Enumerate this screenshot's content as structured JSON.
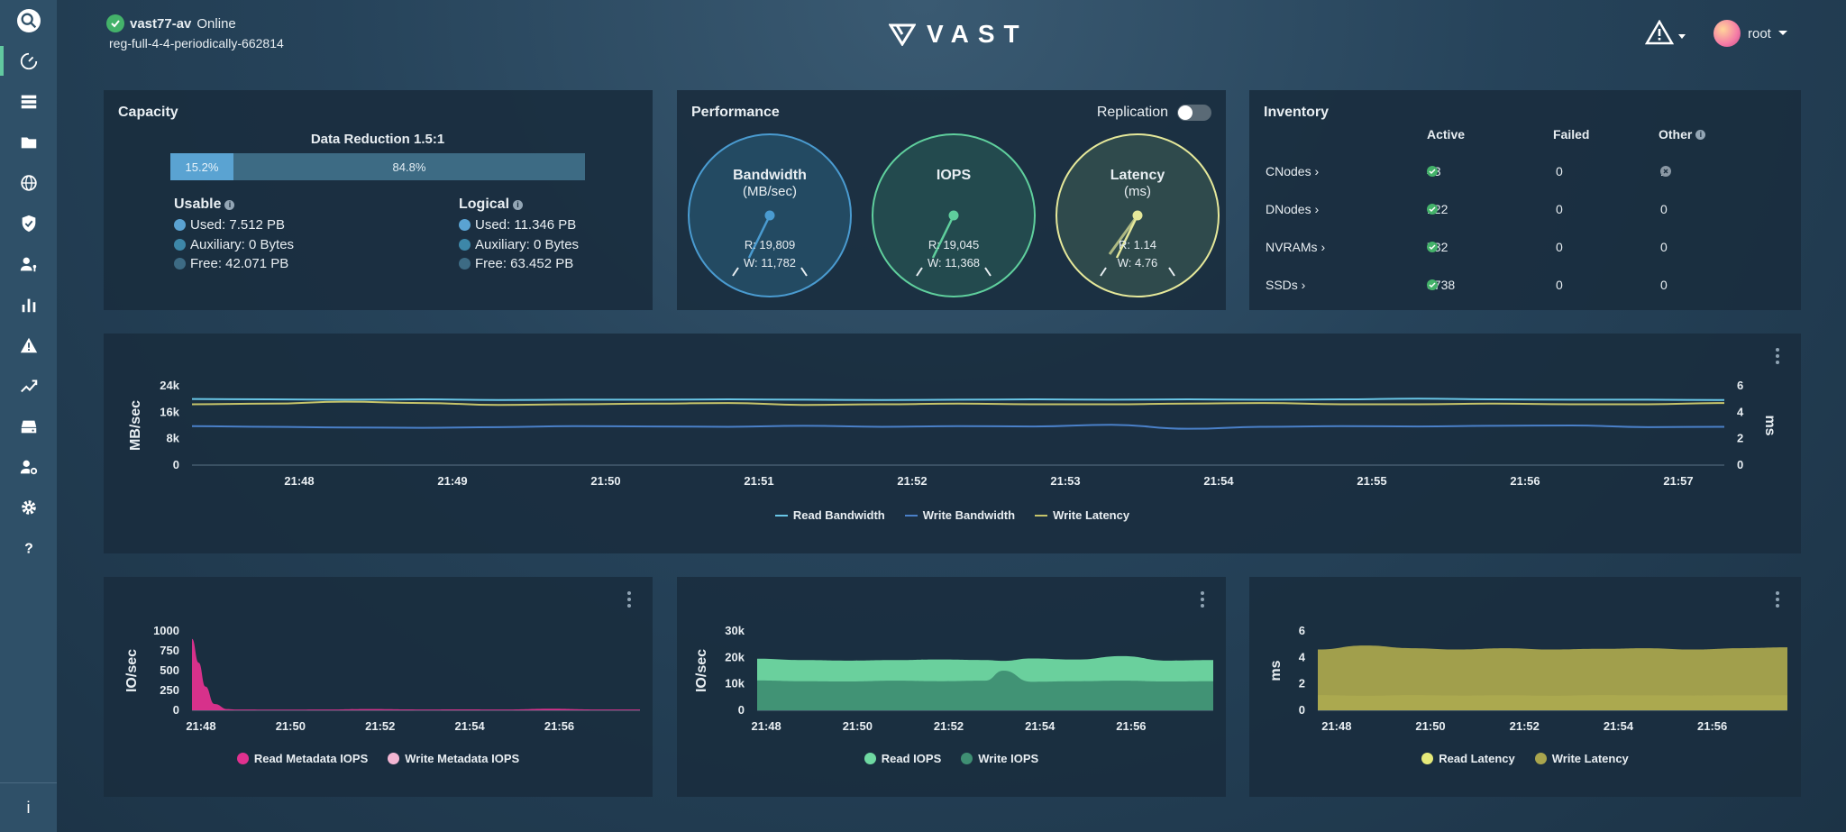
{
  "cluster": {
    "name": "vast77-av",
    "status": "Online",
    "subtitle": "reg-full-4-4-periodically-662814"
  },
  "logo": {
    "text": "VAST"
  },
  "user": {
    "name": "root"
  },
  "sidebar": {
    "items": [
      "search-icon",
      "dashboard-icon",
      "storage-icon",
      "folder-icon",
      "globe-icon",
      "shield-icon",
      "user-key-icon",
      "bar-chart-icon",
      "alert-icon",
      "trend-icon",
      "drive-icon",
      "user-gear-icon",
      "gear-icon",
      "help-icon"
    ],
    "bottom_label": "i"
  },
  "capacity": {
    "title": "Capacity",
    "data_reduction": "Data Reduction 1.5:1",
    "bar": {
      "used_fraction": 0.152,
      "used_label": "15.2%",
      "free_label": "84.8%"
    },
    "usable": {
      "title": "Usable",
      "used": "Used: 7.512 PB",
      "auxiliary": "Auxiliary: 0 Bytes",
      "free": "Free: 42.071 PB"
    },
    "logical": {
      "title": "Logical",
      "used": "Used: 11.346 PB",
      "auxiliary": "Auxiliary: 0 Bytes",
      "free": "Free: 63.452 PB"
    },
    "colors": {
      "used": "#5aa3d2",
      "auxiliary": "#3d87a8",
      "free": "#3d6b84"
    }
  },
  "performance": {
    "title": "Performance",
    "replication_label": "Replication",
    "gauges": [
      {
        "title": "Bandwidth",
        "subtitle": "(MB/sec)",
        "read": "R: 19,809",
        "write": "W: 11,782",
        "color": "#4a9bd0",
        "fill": "#234a62"
      },
      {
        "title": "IOPS",
        "subtitle": "",
        "read": "R: 19,045",
        "write": "W: 11,368",
        "color": "#5fcf9d",
        "fill": "#234a4e"
      },
      {
        "title": "Latency",
        "subtitle": "(ms)",
        "read": "R: 1.14",
        "write": "W: 4.76",
        "color": "#e5e89a",
        "fill": "#2f4a4c"
      }
    ]
  },
  "inventory": {
    "title": "Inventory",
    "headers": {
      "active": "Active",
      "failed": "Failed",
      "other": "Other"
    },
    "rows": [
      {
        "name": "CNodes ›",
        "active": "43",
        "failed": "0",
        "other": "1"
      },
      {
        "name": "DNodes ›",
        "active": "122",
        "failed": "0",
        "other": "0"
      },
      {
        "name": "NVRAMs ›",
        "active": "732",
        "failed": "0",
        "other": "0"
      },
      {
        "name": "SSDs ›",
        "active": "3738",
        "failed": "0",
        "other": "0"
      }
    ]
  },
  "chart_data": [
    {
      "type": "line",
      "ylabel": "MB/sec",
      "y2label": "ms",
      "ylim": [
        0,
        24000
      ],
      "yticks": [
        "0",
        "8k",
        "16k",
        "24k"
      ],
      "y2lim": [
        0,
        6
      ],
      "y2ticks": [
        "0",
        "2",
        "4",
        "6"
      ],
      "xticks": [
        "21:48",
        "21:49",
        "21:50",
        "21:51",
        "21:52",
        "21:53",
        "21:54",
        "21:55",
        "21:56",
        "21:57"
      ],
      "x": [
        0,
        0.5,
        1,
        1.5,
        2,
        2.5,
        3,
        3.5,
        4,
        4.5,
        5,
        5.5,
        6,
        6.5,
        7,
        7.5,
        8,
        8.5,
        9,
        9.5,
        10
      ],
      "series": [
        {
          "name": "Read Bandwidth",
          "color": "#69c6e6",
          "axis": "left",
          "values": [
            20000,
            19900,
            19800,
            19900,
            19700,
            19800,
            19800,
            19900,
            19800,
            19700,
            19800,
            19900,
            19800,
            19900,
            19800,
            19900,
            20100,
            19900,
            19800,
            19800,
            19700
          ]
        },
        {
          "name": "Write Bandwidth",
          "color": "#4a80c8",
          "axis": "left",
          "values": [
            11800,
            11600,
            11400,
            11300,
            11500,
            11800,
            11700,
            11600,
            11900,
            11600,
            11800,
            11700,
            12200,
            11000,
            11600,
            11800,
            11700,
            11900,
            12000,
            11500,
            11600
          ]
        },
        {
          "name": "Write Latency",
          "color": "#c6c46a",
          "axis": "right",
          "values": [
            4.6,
            4.65,
            4.8,
            4.7,
            4.55,
            4.6,
            4.65,
            4.7,
            4.55,
            4.6,
            4.65,
            4.6,
            4.6,
            4.65,
            4.7,
            4.6,
            4.6,
            4.65,
            4.6,
            4.6,
            4.7
          ]
        }
      ]
    },
    {
      "type": "area",
      "ylabel": "IO/sec",
      "ylim": [
        0,
        1000
      ],
      "yticks": [
        "0",
        "250",
        "500",
        "750",
        "1000"
      ],
      "xticks": [
        "21:48",
        "21:50",
        "21:52",
        "21:54",
        "21:56"
      ],
      "x": [
        0,
        0.15,
        0.3,
        0.5,
        0.8,
        1,
        2,
        3,
        4,
        5,
        6,
        7,
        8,
        9,
        10
      ],
      "series": [
        {
          "name": "Read Metadata IOPS",
          "color": "#e1318f",
          "values": [
            900,
            600,
            300,
            80,
            15,
            10,
            8,
            10,
            15,
            10,
            12,
            10,
            20,
            10,
            10
          ]
        },
        {
          "name": "Write Metadata IOPS",
          "color": "#f3b6d3",
          "values": [
            0,
            0,
            0,
            0,
            0,
            0,
            0,
            0,
            0,
            0,
            0,
            0,
            0,
            0,
            0
          ]
        }
      ]
    },
    {
      "type": "area",
      "ylabel": "IO/sec",
      "ylim": [
        0,
        30000
      ],
      "yticks": [
        "0",
        "10k",
        "20k",
        "30k"
      ],
      "xticks": [
        "21:48",
        "21:50",
        "21:52",
        "21:54",
        "21:56"
      ],
      "x": [
        0,
        1,
        2,
        3,
        4,
        5,
        5.4,
        6,
        7,
        8,
        9,
        10
      ],
      "series": [
        {
          "name": "Read IOPS",
          "color": "#6fd9a2",
          "values": [
            19500,
            19000,
            18800,
            19000,
            19200,
            19000,
            18700,
            19600,
            19200,
            20500,
            18800,
            19000
          ]
        },
        {
          "name": "Write IOPS",
          "color": "#3f8f73",
          "values": [
            11300,
            11000,
            10900,
            11200,
            11000,
            11200,
            15000,
            10800,
            11000,
            11200,
            10900,
            11000
          ]
        }
      ]
    },
    {
      "type": "area",
      "ylabel": "ms",
      "ylim": [
        0,
        6
      ],
      "yticks": [
        "0",
        "2",
        "4",
        "6"
      ],
      "xticks": [
        "21:48",
        "21:50",
        "21:52",
        "21:54",
        "21:56"
      ],
      "x": [
        0,
        1,
        2,
        3,
        4,
        5,
        6,
        7,
        8,
        9,
        10
      ],
      "series": [
        {
          "name": "Read Latency",
          "color": "#e6ea7a",
          "values": [
            1.15,
            1.1,
            1.15,
            1.12,
            1.14,
            1.1,
            1.15,
            1.13,
            1.12,
            1.14,
            1.14
          ]
        },
        {
          "name": "Write Latency",
          "color": "#a9a54d",
          "values": [
            4.6,
            4.9,
            4.7,
            4.6,
            4.7,
            4.6,
            4.65,
            4.7,
            4.6,
            4.7,
            4.76
          ]
        }
      ]
    }
  ]
}
